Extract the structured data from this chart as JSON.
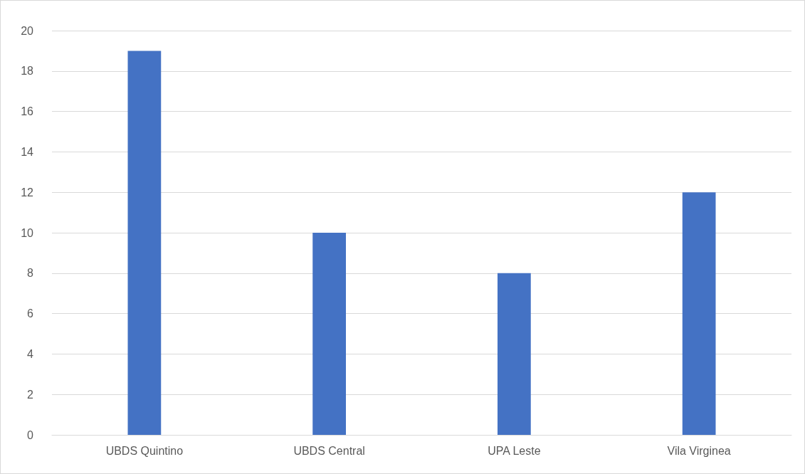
{
  "chart_data": {
    "type": "bar",
    "categories": [
      "UBDS Quintino",
      "UBDS Central",
      "UPA Leste",
      "Vila Virginea"
    ],
    "values": [
      19,
      10,
      8,
      12
    ],
    "color": "#4472c4",
    "ylim": [
      0,
      20
    ],
    "yticks": [
      0,
      2,
      4,
      6,
      8,
      10,
      12,
      14,
      16,
      18,
      20
    ],
    "grid": "y"
  }
}
